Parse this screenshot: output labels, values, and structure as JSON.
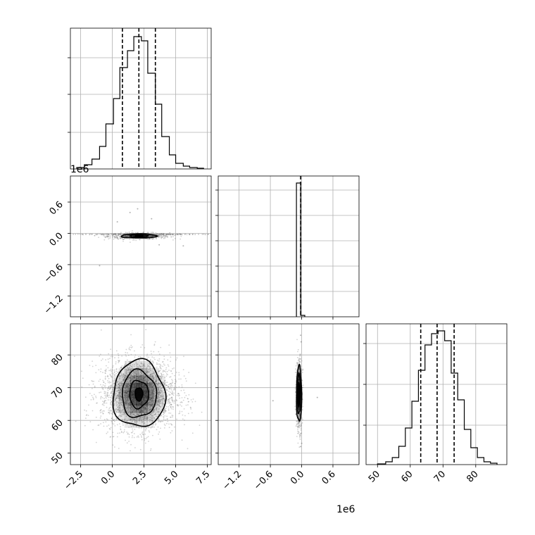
{
  "chart_data": {
    "type": "corner",
    "parameters": [
      "p0",
      "p1",
      "p2"
    ],
    "colors": {
      "line": "#000000",
      "grid": "#b0b0b0",
      "scatter": "#7f7f7f",
      "background": "#ffffff"
    },
    "ranges": {
      "p0": [
        -3.3,
        7.8
      ],
      "p1_e6": [
        -1.6,
        1.1
      ],
      "p2": [
        46.5,
        89.5
      ]
    },
    "ticks": {
      "p0": {
        "values": [
          -2.5,
          0.0,
          2.5,
          5.0,
          7.5
        ],
        "labels": [
          "−2.5",
          "0.0",
          "2.5",
          "5.0",
          "7.5"
        ]
      },
      "p1": {
        "values": [
          -1.2,
          -0.6,
          0.0,
          0.6
        ],
        "labels": [
          "−1.2",
          "−0.6",
          "0.0",
          "0.6"
        ]
      },
      "p2": {
        "values": [
          50,
          60,
          70,
          80
        ],
        "labels": [
          "50",
          "60",
          "70",
          "80"
        ]
      }
    },
    "offset_labels": [
      "1e6",
      "1e6"
    ],
    "grid": true,
    "quantiles": {
      "p0": [
        0.8,
        2.1,
        3.4
      ],
      "p1_e6": [
        -0.02
      ],
      "p2": [
        63.2,
        68.2,
        73.4
      ]
    },
    "histograms": {
      "p0": {
        "edges": [
          -2.8,
          -2.2,
          -1.6,
          -1.0,
          -0.5,
          0.1,
          0.6,
          1.2,
          1.7,
          2.3,
          2.8,
          3.4,
          3.9,
          4.5,
          5.0,
          5.6,
          6.1,
          6.7,
          7.2
        ],
        "counts": [
          0.01,
          0.03,
          0.07,
          0.16,
          0.32,
          0.5,
          0.72,
          0.84,
          0.94,
          0.91,
          0.68,
          0.46,
          0.23,
          0.1,
          0.04,
          0.02,
          0.01,
          0.005
        ]
      },
      "p1_e6": {
        "edges": [
          -0.1,
          -0.02,
          0.06
        ],
        "counts": [
          0.95,
          0.01
        ]
      },
      "p2": {
        "edges": [
          50,
          52.5,
          54.5,
          56.5,
          58.5,
          60.5,
          62.5,
          64.5,
          66.5,
          68.5,
          70.5,
          72.5,
          74.5,
          76.5,
          78.5,
          80.5,
          82.5,
          84.5,
          86.5
        ],
        "counts": [
          0.005,
          0.02,
          0.05,
          0.13,
          0.26,
          0.45,
          0.67,
          0.85,
          0.93,
          0.95,
          0.88,
          0.65,
          0.46,
          0.25,
          0.12,
          0.05,
          0.02,
          0.01
        ]
      }
    },
    "pairs": [
      {
        "x": "p0",
        "y": "p1_e6",
        "center": [
          2.1,
          -0.05
        ],
        "spread": [
          1.2,
          0.03
        ],
        "contours": [
          [
            1.4,
            0.04
          ],
          [
            0.7,
            0.025
          ],
          [
            0.3,
            0.015
          ]
        ],
        "outliers": [
          [
            -1.0,
            -0.62
          ],
          [
            1.4,
            0.4
          ],
          [
            2.0,
            0.47
          ],
          [
            3.1,
            0.28
          ],
          [
            5.6,
            -0.24
          ],
          [
            0.4,
            0.22
          ],
          [
            3.7,
            -0.22
          ]
        ]
      },
      {
        "x": "p0",
        "y": "p2",
        "center": [
          2.1,
          68.0
        ],
        "spread": [
          1.5,
          5.5
        ],
        "contours": [
          [
            2.05,
            10.2
          ],
          [
            1.35,
            7.2
          ],
          [
            0.75,
            4.2
          ],
          [
            0.3,
            2.0
          ]
        ],
        "outliers": []
      },
      {
        "x": "p1_e6",
        "y": "p2",
        "center": [
          -0.05,
          68.0
        ],
        "spread": [
          0.03,
          5.5
        ],
        "contours": [
          [
            0.05,
            8.5
          ],
          [
            0.03,
            6.0
          ],
          [
            0.015,
            3.5
          ]
        ],
        "outliers": [
          [
            -0.02,
            86.0
          ],
          [
            -0.02,
            52.0
          ],
          [
            -0.01,
            84.0
          ],
          [
            0.0,
            53.0
          ],
          [
            0.3,
            67.0
          ],
          [
            -0.55,
            66.0
          ]
        ]
      }
    ]
  }
}
